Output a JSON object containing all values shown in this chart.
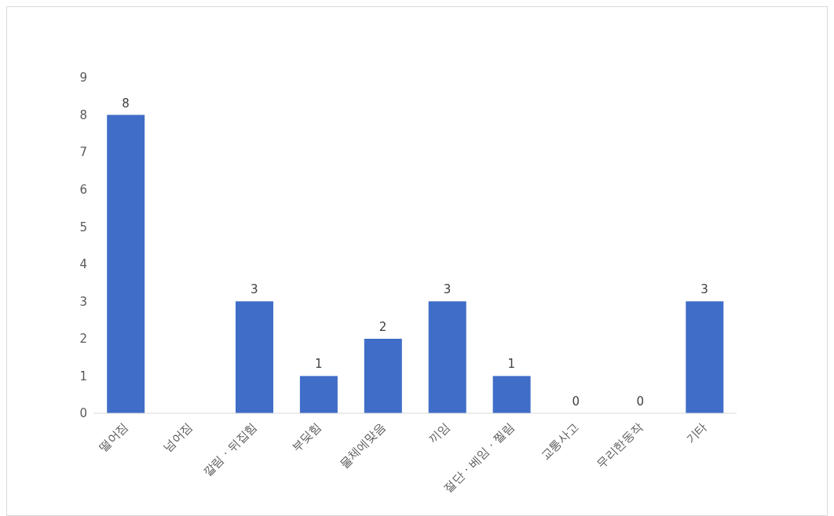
{
  "chart_data": {
    "type": "bar",
    "categories": [
      "떨어짐",
      "넘어짐",
      "깔림 · 뒤집힘",
      "부딪힘",
      "물체에맞음",
      "끼임",
      "절단 · 베임 · 찔림",
      "교통사고",
      "무리한동작",
      "기타"
    ],
    "values": [
      8,
      null,
      3,
      1,
      2,
      3,
      1,
      0,
      0,
      3
    ],
    "color": "#3f6dc7",
    "ylim": [
      0,
      9
    ],
    "yticks": [
      0,
      1,
      2,
      3,
      4,
      5,
      6,
      7,
      8,
      9
    ],
    "data_labels": true
  }
}
